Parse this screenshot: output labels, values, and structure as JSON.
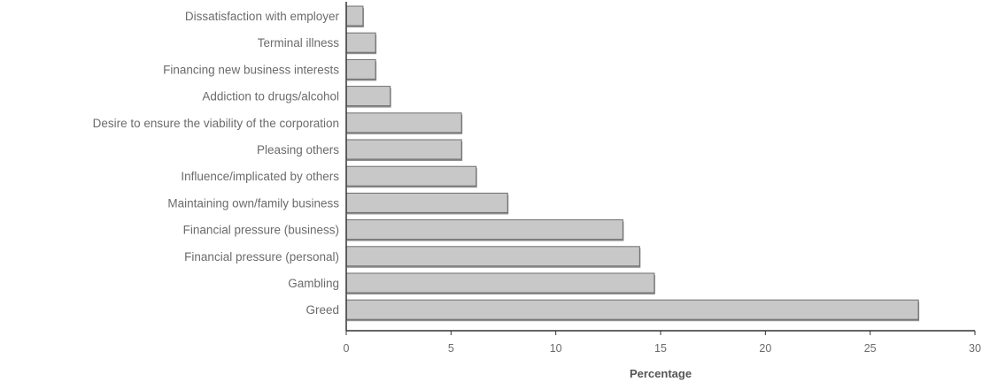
{
  "chart_data": {
    "type": "bar",
    "orientation": "horizontal",
    "title": "",
    "xlabel": "Percentage",
    "ylabel": "",
    "xlim": [
      0,
      30
    ],
    "xticks": [
      0,
      5,
      10,
      15,
      20,
      25,
      30
    ],
    "grid": false,
    "legend": "none",
    "bar_color": "#c8c8c8",
    "bar_edge_color": "#6e6e6e",
    "categories": [
      "Dissatisfaction with employer",
      "Terminal illness",
      "Financing new business interests",
      "Addiction to drugs/alcohol",
      "Desire to ensure the viability of the corporation",
      "Pleasing others",
      "Influence/implicated by others",
      "Maintaining own/family business",
      "Financial pressure (business)",
      "Financial pressure (personal)",
      "Gambling",
      "Greed"
    ],
    "values": [
      0.8,
      1.4,
      1.4,
      2.1,
      5.5,
      5.5,
      6.2,
      7.7,
      13.2,
      14.0,
      14.7,
      27.3
    ]
  }
}
